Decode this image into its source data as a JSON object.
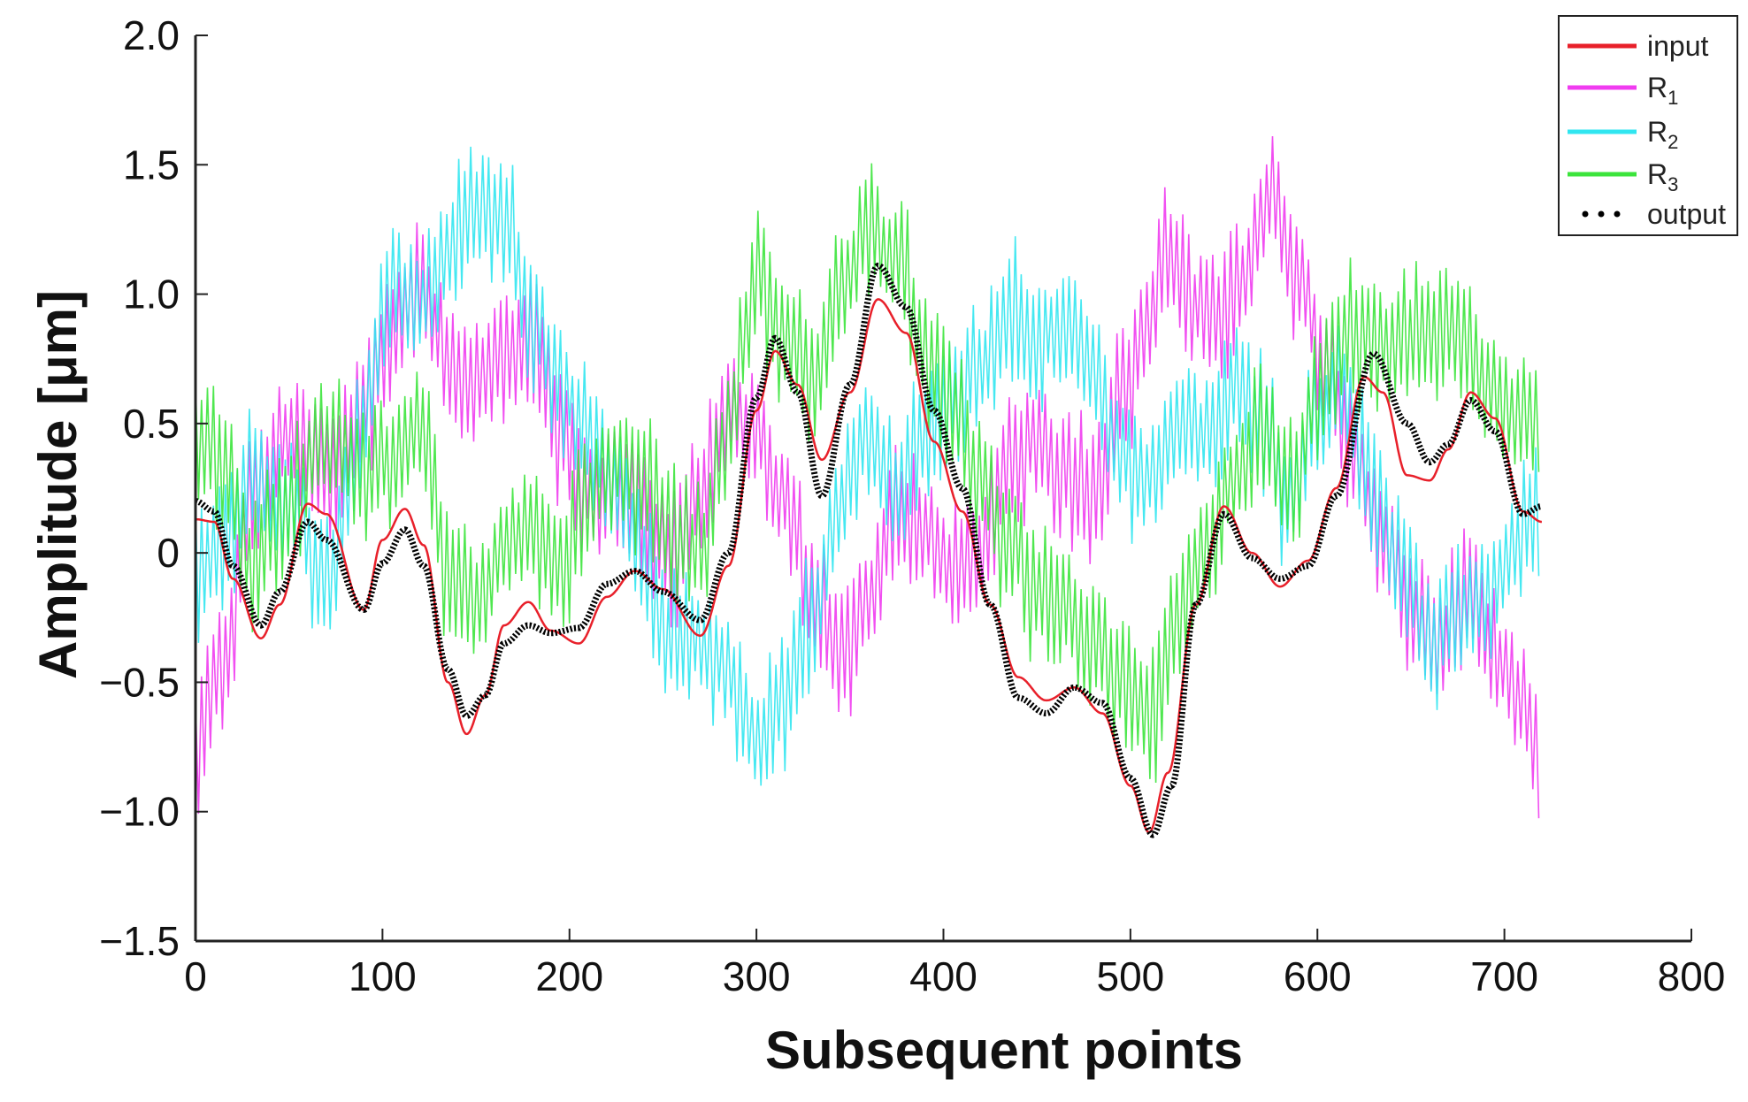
{
  "chart_data": {
    "type": "line",
    "title": "",
    "xlabel": "Subsequent points",
    "ylabel": "Amplitude [μm]",
    "xlim": [
      0,
      800
    ],
    "ylim": [
      -1.5,
      2.0
    ],
    "xticks": [
      0,
      100,
      200,
      300,
      400,
      500,
      600,
      700,
      800
    ],
    "xtick_labels": [
      "0",
      "100",
      "200",
      "300",
      "400",
      "500",
      "600",
      "700",
      "800"
    ],
    "yticks": [
      2.0,
      1.5,
      1.0,
      0.5,
      0,
      -0.5,
      -1.0,
      -1.5
    ],
    "ytick_labels": [
      "2.0",
      "1.5",
      "1.0",
      "0.5",
      "0",
      "−0.5",
      "−1.0",
      "−1.5"
    ],
    "legend_position": "top-right",
    "grid": false,
    "series": [
      {
        "name": "input",
        "name_base": "input",
        "name_sub": "",
        "color": "#e8202a",
        "style": "solid",
        "x": [
          0,
          10,
          20,
          35,
          45,
          60,
          70,
          90,
          100,
          112,
          122,
          135,
          145,
          155,
          165,
          178,
          190,
          205,
          220,
          235,
          250,
          270,
          285,
          300,
          310,
          322,
          335,
          350,
          365,
          380,
          395,
          410,
          425,
          440,
          455,
          470,
          485,
          500,
          510,
          520,
          535,
          550,
          565,
          580,
          595,
          610,
          625,
          635,
          648,
          660,
          670,
          682,
          695,
          710,
          720
        ],
        "y": [
          0.13,
          0.12,
          -0.1,
          -0.33,
          -0.2,
          0.19,
          0.15,
          -0.22,
          0.05,
          0.17,
          0.03,
          -0.5,
          -0.7,
          -0.55,
          -0.28,
          -0.19,
          -0.3,
          -0.35,
          -0.17,
          -0.07,
          -0.14,
          -0.32,
          -0.05,
          0.55,
          0.78,
          0.65,
          0.36,
          0.62,
          0.98,
          0.85,
          0.43,
          0.16,
          -0.2,
          -0.48,
          -0.57,
          -0.52,
          -0.62,
          -0.9,
          -1.08,
          -0.85,
          -0.2,
          0.18,
          0.0,
          -0.13,
          -0.03,
          0.25,
          0.68,
          0.62,
          0.3,
          0.28,
          0.4,
          0.62,
          0.52,
          0.16,
          0.12
        ]
      },
      {
        "name": "R1",
        "name_base": "R",
        "name_sub": "1",
        "color": "#f03cf0",
        "style": "solid",
        "x": [
          0,
          15,
          30,
          50,
          70,
          90,
          105,
          120,
          135,
          150,
          165,
          180,
          195,
          210,
          225,
          240,
          255,
          270,
          285,
          300,
          315,
          330,
          345,
          360,
          375,
          390,
          405,
          420,
          435,
          450,
          465,
          480,
          495,
          510,
          520,
          535,
          550,
          560,
          575,
          590,
          605,
          620,
          635,
          650,
          665,
          680,
          695,
          710,
          720
        ],
        "y": [
          -0.75,
          -0.4,
          0.2,
          0.45,
          0.3,
          0.55,
          0.85,
          1.05,
          0.75,
          0.65,
          0.8,
          0.8,
          0.45,
          0.25,
          0.25,
          0.1,
          -0.05,
          0.25,
          0.55,
          0.45,
          0.2,
          -0.15,
          -0.4,
          -0.15,
          0.15,
          0.1,
          -0.05,
          0.0,
          0.35,
          0.45,
          0.3,
          0.2,
          0.6,
          0.9,
          1.15,
          0.95,
          0.95,
          1.05,
          1.4,
          1.05,
          0.7,
          0.35,
          0.05,
          -0.25,
          -0.35,
          -0.15,
          -0.4,
          -0.55,
          -0.75
        ]
      },
      {
        "name": "R2",
        "name_base": "R",
        "name_sub": "2",
        "color": "#31e6f0",
        "style": "solid",
        "x": [
          0,
          15,
          30,
          50,
          70,
          90,
          105,
          120,
          135,
          150,
          165,
          180,
          195,
          210,
          225,
          240,
          255,
          270,
          285,
          300,
          315,
          330,
          345,
          360,
          375,
          390,
          405,
          420,
          435,
          450,
          465,
          480,
          495,
          510,
          525,
          540,
          555,
          570,
          585,
          600,
          615,
          630,
          645,
          660,
          675,
          690,
          705,
          720
        ],
        "y": [
          -0.1,
          0.05,
          0.3,
          0.2,
          -0.1,
          0.5,
          1.05,
          0.95,
          1.15,
          1.35,
          1.3,
          0.9,
          0.65,
          0.45,
          0.25,
          -0.05,
          -0.35,
          -0.35,
          -0.45,
          -0.75,
          -0.6,
          -0.25,
          0.2,
          0.45,
          0.25,
          0.45,
          0.6,
          0.7,
          0.95,
          0.8,
          0.9,
          0.7,
          0.35,
          0.3,
          0.5,
          0.45,
          0.65,
          0.5,
          0.2,
          0.55,
          0.6,
          0.25,
          -0.05,
          -0.35,
          -0.25,
          -0.2,
          0.0,
          0.2
        ]
      },
      {
        "name": "R3",
        "name_base": "R",
        "name_sub": "3",
        "color": "#3ce43c",
        "style": "solid",
        "x": [
          0,
          15,
          30,
          50,
          70,
          90,
          105,
          120,
          135,
          150,
          165,
          180,
          195,
          210,
          225,
          240,
          255,
          270,
          285,
          300,
          315,
          330,
          345,
          360,
          375,
          390,
          405,
          420,
          435,
          450,
          465,
          480,
          495,
          510,
          525,
          540,
          555,
          570,
          585,
          600,
          615,
          630,
          645,
          660,
          675,
          690,
          705,
          720
        ],
        "y": [
          0.5,
          0.35,
          -0.05,
          0.2,
          0.45,
          0.3,
          0.35,
          0.5,
          -0.1,
          -0.2,
          0.0,
          0.1,
          -0.05,
          0.2,
          0.35,
          0.25,
          0.1,
          0.0,
          0.5,
          1.05,
          0.85,
          0.65,
          1.0,
          1.25,
          1.15,
          0.75,
          0.55,
          0.3,
          0.05,
          -0.15,
          -0.2,
          -0.35,
          -0.5,
          -0.65,
          -0.25,
          0.0,
          0.3,
          0.45,
          0.25,
          0.6,
          0.85,
          0.85,
          0.8,
          0.85,
          0.85,
          0.65,
          0.55,
          0.5
        ]
      },
      {
        "name": "output",
        "name_base": "output",
        "name_sub": "",
        "color": "#000000",
        "style": "dotted",
        "x": [
          0,
          10,
          20,
          35,
          45,
          60,
          70,
          90,
          100,
          112,
          122,
          135,
          145,
          155,
          165,
          178,
          190,
          205,
          220,
          235,
          250,
          270,
          285,
          300,
          310,
          322,
          335,
          350,
          365,
          380,
          395,
          410,
          425,
          440,
          455,
          470,
          485,
          500,
          512,
          522,
          535,
          550,
          565,
          580,
          595,
          610,
          630,
          648,
          660,
          670,
          682,
          695,
          710,
          720
        ],
        "y": [
          0.2,
          0.16,
          -0.05,
          -0.28,
          -0.15,
          0.12,
          0.05,
          -0.22,
          -0.04,
          0.09,
          -0.05,
          -0.45,
          -0.63,
          -0.55,
          -0.35,
          -0.28,
          -0.31,
          -0.29,
          -0.12,
          -0.07,
          -0.15,
          -0.26,
          0.0,
          0.6,
          0.83,
          0.62,
          0.22,
          0.65,
          1.11,
          0.95,
          0.55,
          0.25,
          -0.2,
          -0.56,
          -0.62,
          -0.52,
          -0.58,
          -0.87,
          -1.09,
          -0.9,
          -0.2,
          0.15,
          -0.02,
          -0.1,
          -0.05,
          0.22,
          0.77,
          0.5,
          0.35,
          0.42,
          0.59,
          0.47,
          0.15,
          0.18
        ]
      }
    ]
  }
}
